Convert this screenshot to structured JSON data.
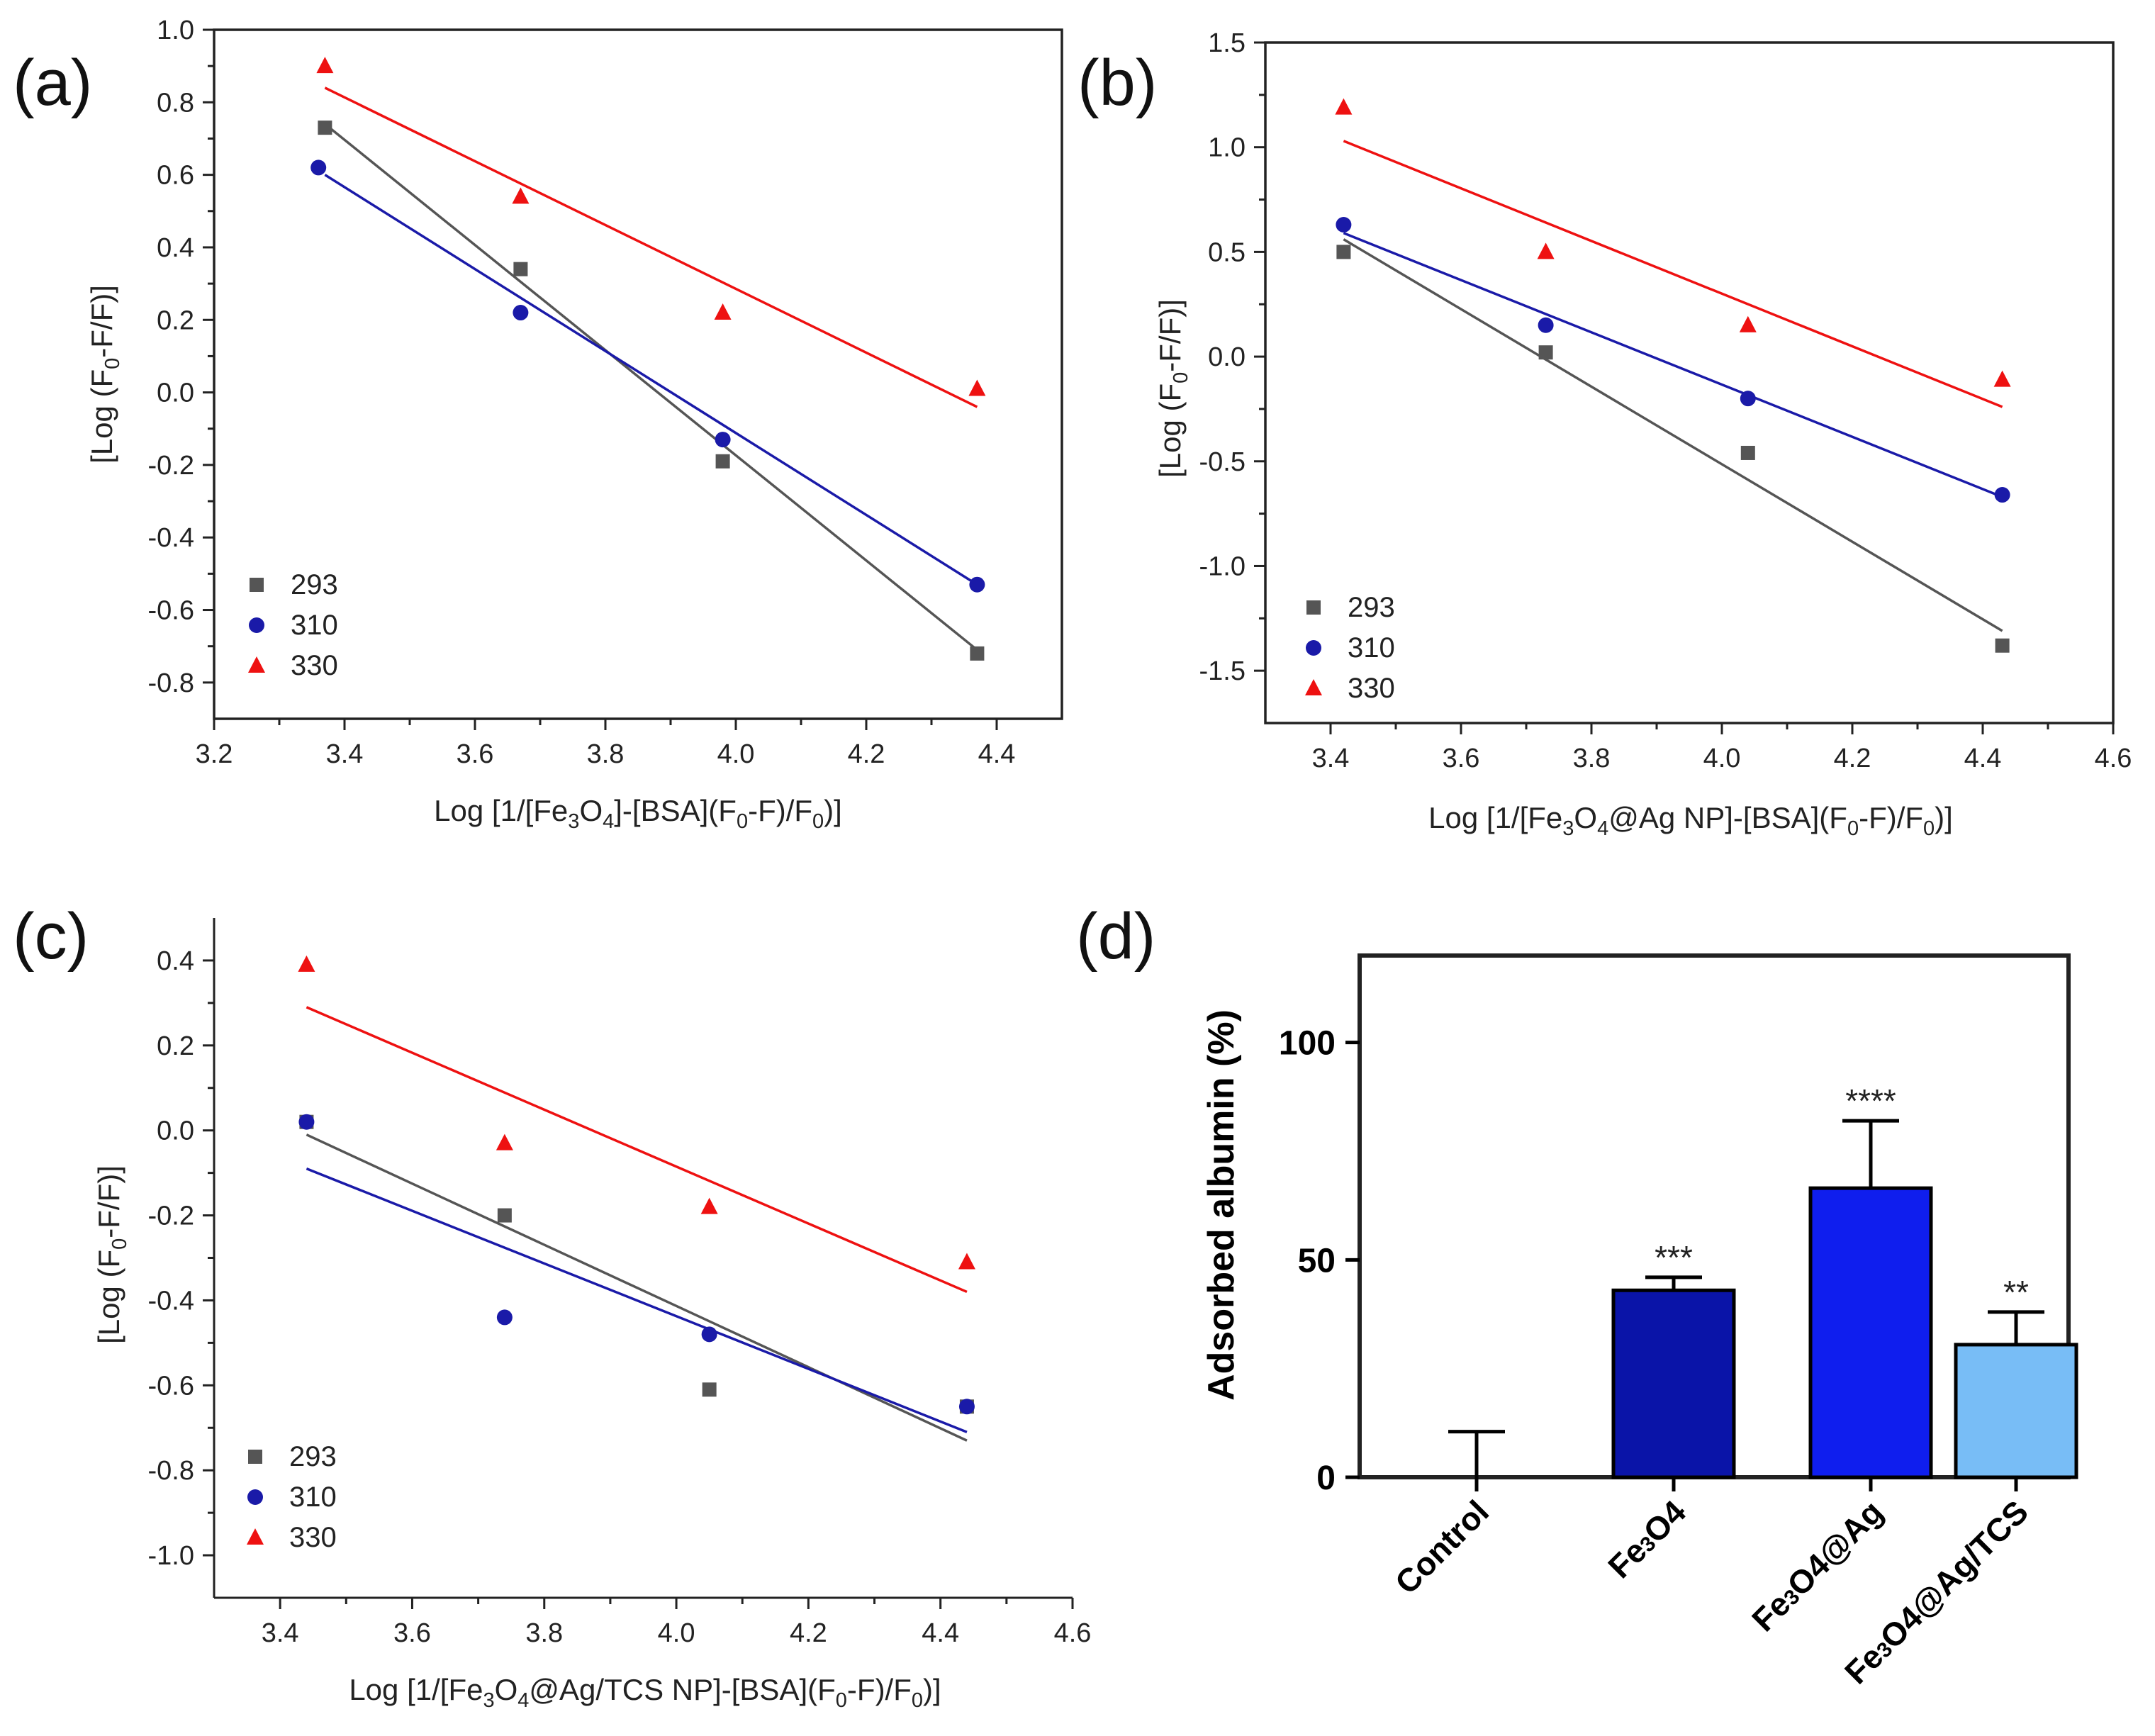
{
  "chart_data": [
    {
      "id": "a",
      "panel_label": "(a)",
      "type": "scatter",
      "xlabel": {
        "pre": "Log [1/[Fe",
        "s1": "3",
        "mid1": "O",
        "s2": "4",
        "mid2": "]-[BSA](F",
        "s3": "0",
        "mid3": "-F)/F",
        "s4": "0",
        "post": ")]"
      },
      "ylabel": {
        "pre": "[Log (F",
        "sub": "0",
        "post": "-F/F)]"
      },
      "xlim": [
        3.2,
        4.5
      ],
      "ylim": [
        -0.9,
        1.0
      ],
      "xticks": [
        "3.2",
        "3.4",
        "3.6",
        "3.8",
        "4.0",
        "4.2",
        "4.4"
      ],
      "yticks": [
        "-0.8",
        "-0.6",
        "-0.4",
        "-0.2",
        "0.0",
        "0.2",
        "0.4",
        "0.6",
        "0.8",
        "1.0"
      ],
      "legend": [
        "293",
        "310",
        "330"
      ],
      "series": [
        {
          "name": "293",
          "color": "#555555",
          "marker": "square",
          "x": [
            3.37,
            3.67,
            3.98,
            4.37
          ],
          "y": [
            0.73,
            0.34,
            -0.19,
            -0.72
          ],
          "fit": [
            [
              3.37,
              0.74
            ],
            [
              4.37,
              -0.71
            ]
          ]
        },
        {
          "name": "310",
          "color": "#1a1aa8",
          "marker": "circle",
          "x": [
            3.36,
            3.67,
            3.98,
            4.37
          ],
          "y": [
            0.62,
            0.22,
            -0.13,
            -0.53
          ],
          "fit": [
            [
              3.37,
              0.6
            ],
            [
              4.37,
              -0.53
            ]
          ]
        },
        {
          "name": "330",
          "color": "#ee1111",
          "marker": "triangle",
          "x": [
            3.37,
            3.67,
            3.98,
            4.37
          ],
          "y": [
            0.9,
            0.54,
            0.22,
            0.01
          ],
          "fit": [
            [
              3.37,
              0.84
            ],
            [
              4.37,
              -0.04
            ]
          ]
        }
      ]
    },
    {
      "id": "b",
      "panel_label": "(b)",
      "type": "scatter",
      "xlabel": {
        "pre": "Log [1/[Fe",
        "s1": "3",
        "mid1": "O",
        "s2": "4",
        "mid2": "@Ag NP]-[BSA](F",
        "s3": "0",
        "mid3": "-F)/F",
        "s4": "0",
        "post": ")]"
      },
      "ylabel": {
        "pre": "[Log (F",
        "sub": "0",
        "post": "-F/F)]"
      },
      "xlim": [
        3.3,
        4.6
      ],
      "ylim": [
        -1.75,
        1.5
      ],
      "xticks": [
        "3.4",
        "3.6",
        "3.8",
        "4.0",
        "4.2",
        "4.4",
        "4.6"
      ],
      "yticks": [
        "-1.5",
        "-1.0",
        "-0.5",
        "0.0",
        "0.5",
        "1.0",
        "1.5"
      ],
      "legend": [
        "293",
        "310",
        "330"
      ],
      "series": [
        {
          "name": "293",
          "color": "#555555",
          "marker": "square",
          "x": [
            3.42,
            3.73,
            4.04,
            4.43
          ],
          "y": [
            0.5,
            0.02,
            -0.46,
            -1.38
          ],
          "fit": [
            [
              3.42,
              0.56
            ],
            [
              4.43,
              -1.31
            ]
          ]
        },
        {
          "name": "310",
          "color": "#1a1aa8",
          "marker": "circle",
          "x": [
            3.42,
            3.73,
            4.04,
            4.43
          ],
          "y": [
            0.63,
            0.15,
            -0.2,
            -0.66
          ],
          "fit": [
            [
              3.42,
              0.59
            ],
            [
              4.43,
              -0.67
            ]
          ]
        },
        {
          "name": "330",
          "color": "#ee1111",
          "marker": "triangle",
          "x": [
            3.42,
            3.73,
            4.04,
            4.43
          ],
          "y": [
            1.19,
            0.5,
            0.15,
            -0.11
          ],
          "fit": [
            [
              3.42,
              1.03
            ],
            [
              4.43,
              -0.24
            ]
          ]
        }
      ]
    },
    {
      "id": "c",
      "panel_label": "(c)",
      "type": "scatter",
      "xlabel": {
        "pre": "Log [1/[Fe",
        "s1": "3",
        "mid1": "O",
        "s2": "4",
        "mid2": "@Ag/TCS NP]-[BSA](F",
        "s3": "0",
        "mid3": "-F)/F",
        "s4": "0",
        "post": ")]"
      },
      "ylabel": {
        "pre": "[Log (F",
        "sub": "0",
        "post": "-F/F)]"
      },
      "xlim": [
        3.3,
        4.6
      ],
      "ylim": [
        -1.1,
        0.5
      ],
      "xticks": [
        "3.4",
        "3.6",
        "3.8",
        "4.0",
        "4.2",
        "4.4",
        "4.6"
      ],
      "yticks": [
        "-1.0",
        "-0.8",
        "-0.6",
        "-0.4",
        "-0.2",
        "0.0",
        "0.2",
        "0.4"
      ],
      "legend": [
        "293",
        "310",
        "330"
      ],
      "series": [
        {
          "name": "293",
          "color": "#555555",
          "marker": "square",
          "x": [
            3.44,
            3.74,
            4.05,
            4.44
          ],
          "y": [
            0.02,
            -0.2,
            -0.61,
            -0.65
          ],
          "fit": [
            [
              3.44,
              -0.01
            ],
            [
              4.44,
              -0.73
            ]
          ]
        },
        {
          "name": "310",
          "color": "#1a1aa8",
          "marker": "circle",
          "x": [
            3.44,
            3.74,
            4.05,
            4.44
          ],
          "y": [
            0.02,
            -0.44,
            -0.48,
            -0.65
          ],
          "fit": [
            [
              3.44,
              -0.09
            ],
            [
              4.44,
              -0.71
            ]
          ]
        },
        {
          "name": "330",
          "color": "#ee1111",
          "marker": "triangle",
          "x": [
            3.44,
            3.74,
            4.05,
            4.44
          ],
          "y": [
            0.39,
            -0.03,
            -0.18,
            -0.31
          ],
          "fit": [
            [
              3.44,
              0.29
            ],
            [
              4.44,
              -0.38
            ]
          ]
        }
      ]
    },
    {
      "id": "d",
      "panel_label": "(d)",
      "type": "bar",
      "ylabel": "Adsorbed albumin (%)",
      "ylim": [
        0,
        120
      ],
      "yticks": [
        "0",
        "50",
        "100"
      ],
      "categories": [
        {
          "label": "Control",
          "pre": "Control",
          "sub": "",
          "post": ""
        },
        {
          "label": "Fe3O4",
          "pre": "Fe",
          "sub": "3",
          "post": "O4"
        },
        {
          "label": "Fe3O4@Ag",
          "pre": "Fe",
          "sub": "3",
          "post": "O4@Ag"
        },
        {
          "label": "Fe3O4@Ag/TCS",
          "pre": "Fe",
          "sub": "3",
          "post": "O4@Ag/TCS"
        }
      ],
      "values": [
        0,
        43,
        66.5,
        30.5
      ],
      "errors": [
        10.5,
        3,
        15.5,
        7.5
      ],
      "significance": [
        "",
        "***",
        "****",
        "**"
      ],
      "colors": [
        "#ffffff",
        "#0a14a8",
        "#0f1eee",
        "#78bdf6"
      ]
    }
  ]
}
